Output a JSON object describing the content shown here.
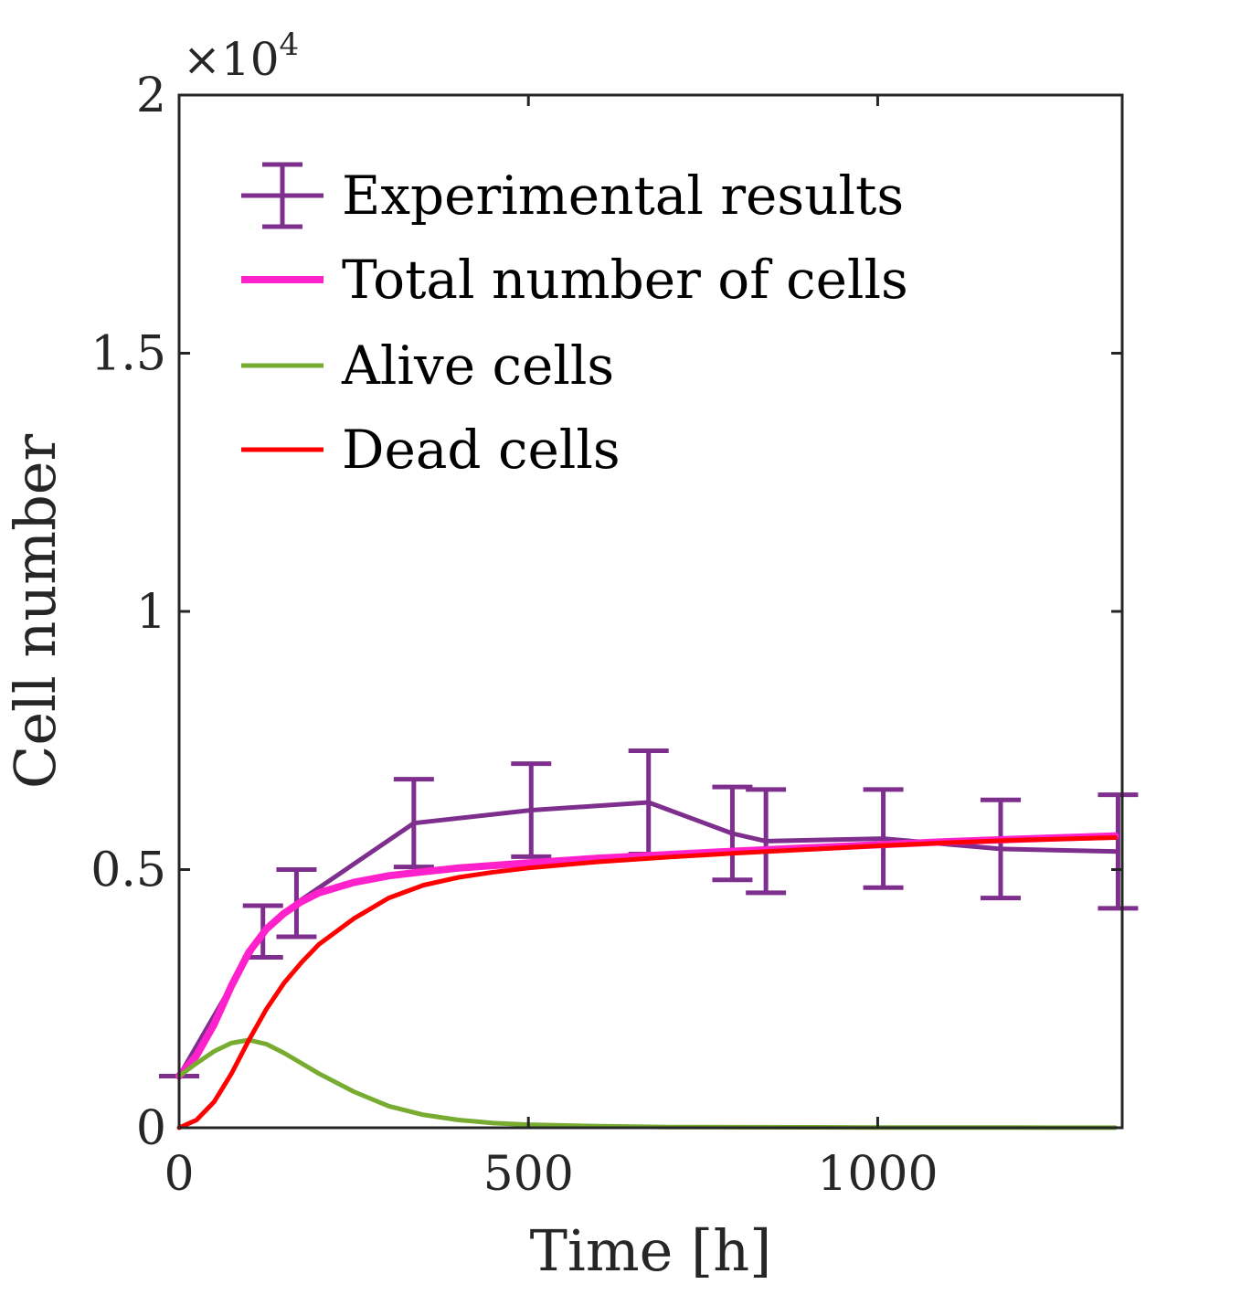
{
  "chart_data": {
    "type": "line",
    "xlabel": "Time [h]",
    "ylabel": "Cell number",
    "y_exponent_label": "×10",
    "y_exponent_power": "4",
    "xlim": [
      0,
      1350
    ],
    "ylim": [
      0,
      20000
    ],
    "x_ticks": [
      0,
      500,
      1000
    ],
    "x_tick_labels": [
      "0",
      "500",
      "1000"
    ],
    "y_ticks": [
      0,
      5000,
      10000,
      15000,
      20000
    ],
    "y_tick_labels": [
      "0",
      "0.5",
      "1",
      "1.5",
      "2"
    ],
    "grid": false,
    "legend_position": "top-left",
    "series": [
      {
        "name": "Experimental results",
        "kind": "errorbar",
        "color": "#7E2F8E",
        "x": [
          0,
          120,
          168,
          336,
          504,
          672,
          792,
          840,
          1008,
          1176,
          1344
        ],
        "y": [
          1000,
          3800,
          4350,
          5900,
          6150,
          6300,
          5700,
          5550,
          5600,
          5400,
          5350
        ],
        "err": [
          0,
          500,
          650,
          850,
          900,
          1000,
          900,
          1000,
          950,
          950,
          1100
        ]
      },
      {
        "name": "Total number of cells",
        "kind": "line",
        "color": "#FF22CC",
        "x": [
          0,
          25,
          50,
          75,
          100,
          125,
          150,
          175,
          200,
          250,
          300,
          350,
          400,
          500,
          600,
          700,
          800,
          900,
          1000,
          1100,
          1200,
          1340
        ],
        "y": [
          1000,
          1400,
          2000,
          2750,
          3400,
          3850,
          4150,
          4380,
          4550,
          4750,
          4880,
          4960,
          5030,
          5130,
          5220,
          5290,
          5360,
          5420,
          5480,
          5540,
          5590,
          5650
        ]
      },
      {
        "name": "Alive cells",
        "kind": "line",
        "color": "#77AC30",
        "x": [
          0,
          25,
          50,
          75,
          100,
          125,
          150,
          175,
          200,
          250,
          300,
          350,
          400,
          450,
          500,
          600,
          700,
          800,
          1000,
          1200,
          1340
        ],
        "y": [
          1000,
          1250,
          1480,
          1640,
          1700,
          1620,
          1450,
          1250,
          1050,
          700,
          420,
          250,
          150,
          90,
          60,
          30,
          15,
          10,
          5,
          3,
          2
        ]
      },
      {
        "name": "Dead cells",
        "kind": "line",
        "color": "#FF0000",
        "x": [
          0,
          25,
          50,
          75,
          100,
          125,
          150,
          175,
          200,
          250,
          300,
          350,
          400,
          450,
          500,
          600,
          700,
          800,
          900,
          1000,
          1100,
          1200,
          1340
        ],
        "y": [
          0,
          150,
          500,
          1050,
          1700,
          2300,
          2800,
          3200,
          3550,
          4050,
          4450,
          4700,
          4850,
          4950,
          5030,
          5150,
          5240,
          5320,
          5390,
          5460,
          5520,
          5570,
          5620
        ]
      }
    ]
  }
}
